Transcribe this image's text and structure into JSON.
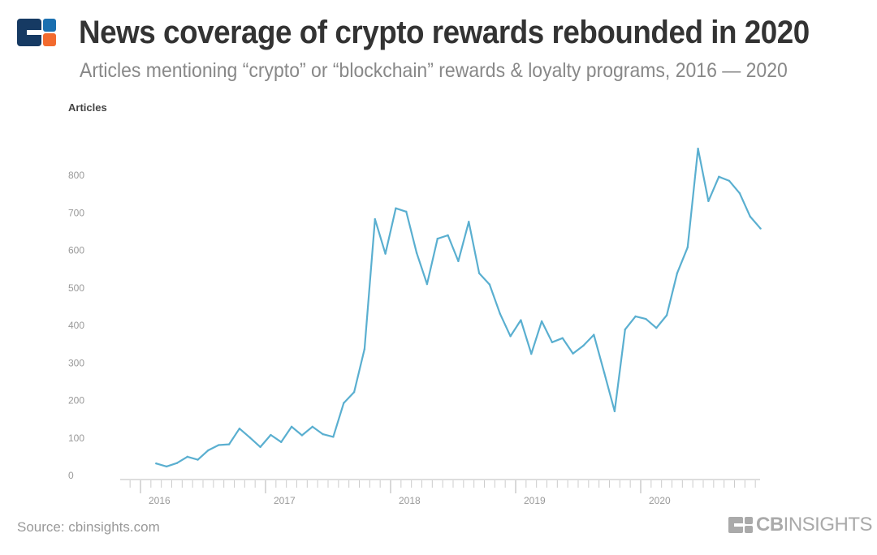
{
  "header": {
    "title": "News coverage of crypto rewards rebounded in 2020",
    "subtitle": "Articles mentioning “crypto” or “blockchain” rewards & loyalty programs, 2016 — 2020"
  },
  "footer": {
    "source": "Source: cbinsights.com",
    "brand": "CBINSIGHTS",
    "brand_bold": "CB",
    "brand_light": "INSIGHTS"
  },
  "colors": {
    "line": "#5aafd0",
    "logo_navy": "#163a63",
    "logo_blue": "#1a6fb0",
    "logo_orange": "#f26a2e"
  },
  "chart_data": {
    "type": "line",
    "title": "News coverage of crypto rewards rebounded in 2020",
    "subtitle": "Articles mentioning “crypto” or “blockchain” rewards & loyalty programs, 2016 — 2020",
    "ylabel": "Articles",
    "xlabel": "",
    "ylim": [
      0,
      880
    ],
    "yticks": [
      0,
      100,
      200,
      300,
      400,
      500,
      600,
      700,
      800
    ],
    "xticks": [
      "2016",
      "2017",
      "2018",
      "2019",
      "2020"
    ],
    "grid": false,
    "x": [
      "2016-02",
      "2016-03",
      "2016-04",
      "2016-05",
      "2016-06",
      "2016-07",
      "2016-08",
      "2016-09",
      "2016-10",
      "2016-11",
      "2016-12",
      "2017-01",
      "2017-02",
      "2017-03",
      "2017-04",
      "2017-05",
      "2017-06",
      "2017-07",
      "2017-08",
      "2017-09",
      "2017-10",
      "2017-11",
      "2017-12",
      "2018-01",
      "2018-02",
      "2018-03",
      "2018-04",
      "2018-05",
      "2018-06",
      "2018-07",
      "2018-08",
      "2018-09",
      "2018-10",
      "2018-11",
      "2018-12",
      "2019-01",
      "2019-02",
      "2019-03",
      "2019-04",
      "2019-05",
      "2019-06",
      "2019-07",
      "2019-08",
      "2019-09",
      "2019-10",
      "2019-11",
      "2019-12",
      "2020-01",
      "2020-02",
      "2020-03",
      "2020-04",
      "2020-05",
      "2020-06",
      "2020-07",
      "2020-08",
      "2020-09",
      "2020-10",
      "2020-11",
      "2020-12"
    ],
    "values": [
      32,
      24,
      33,
      50,
      42,
      67,
      81,
      83,
      125,
      101,
      76,
      108,
      89,
      130,
      107,
      130,
      110,
      103,
      193,
      222,
      337,
      683,
      591,
      712,
      703,
      593,
      510,
      631,
      640,
      571,
      676,
      539,
      509,
      431,
      371,
      414,
      324,
      411,
      355,
      366,
      325,
      346,
      375,
      274,
      171,
      389,
      424,
      417,
      393,
      427,
      539,
      608,
      871,
      731,
      796,
      785,
      752,
      690,
      658
    ]
  }
}
